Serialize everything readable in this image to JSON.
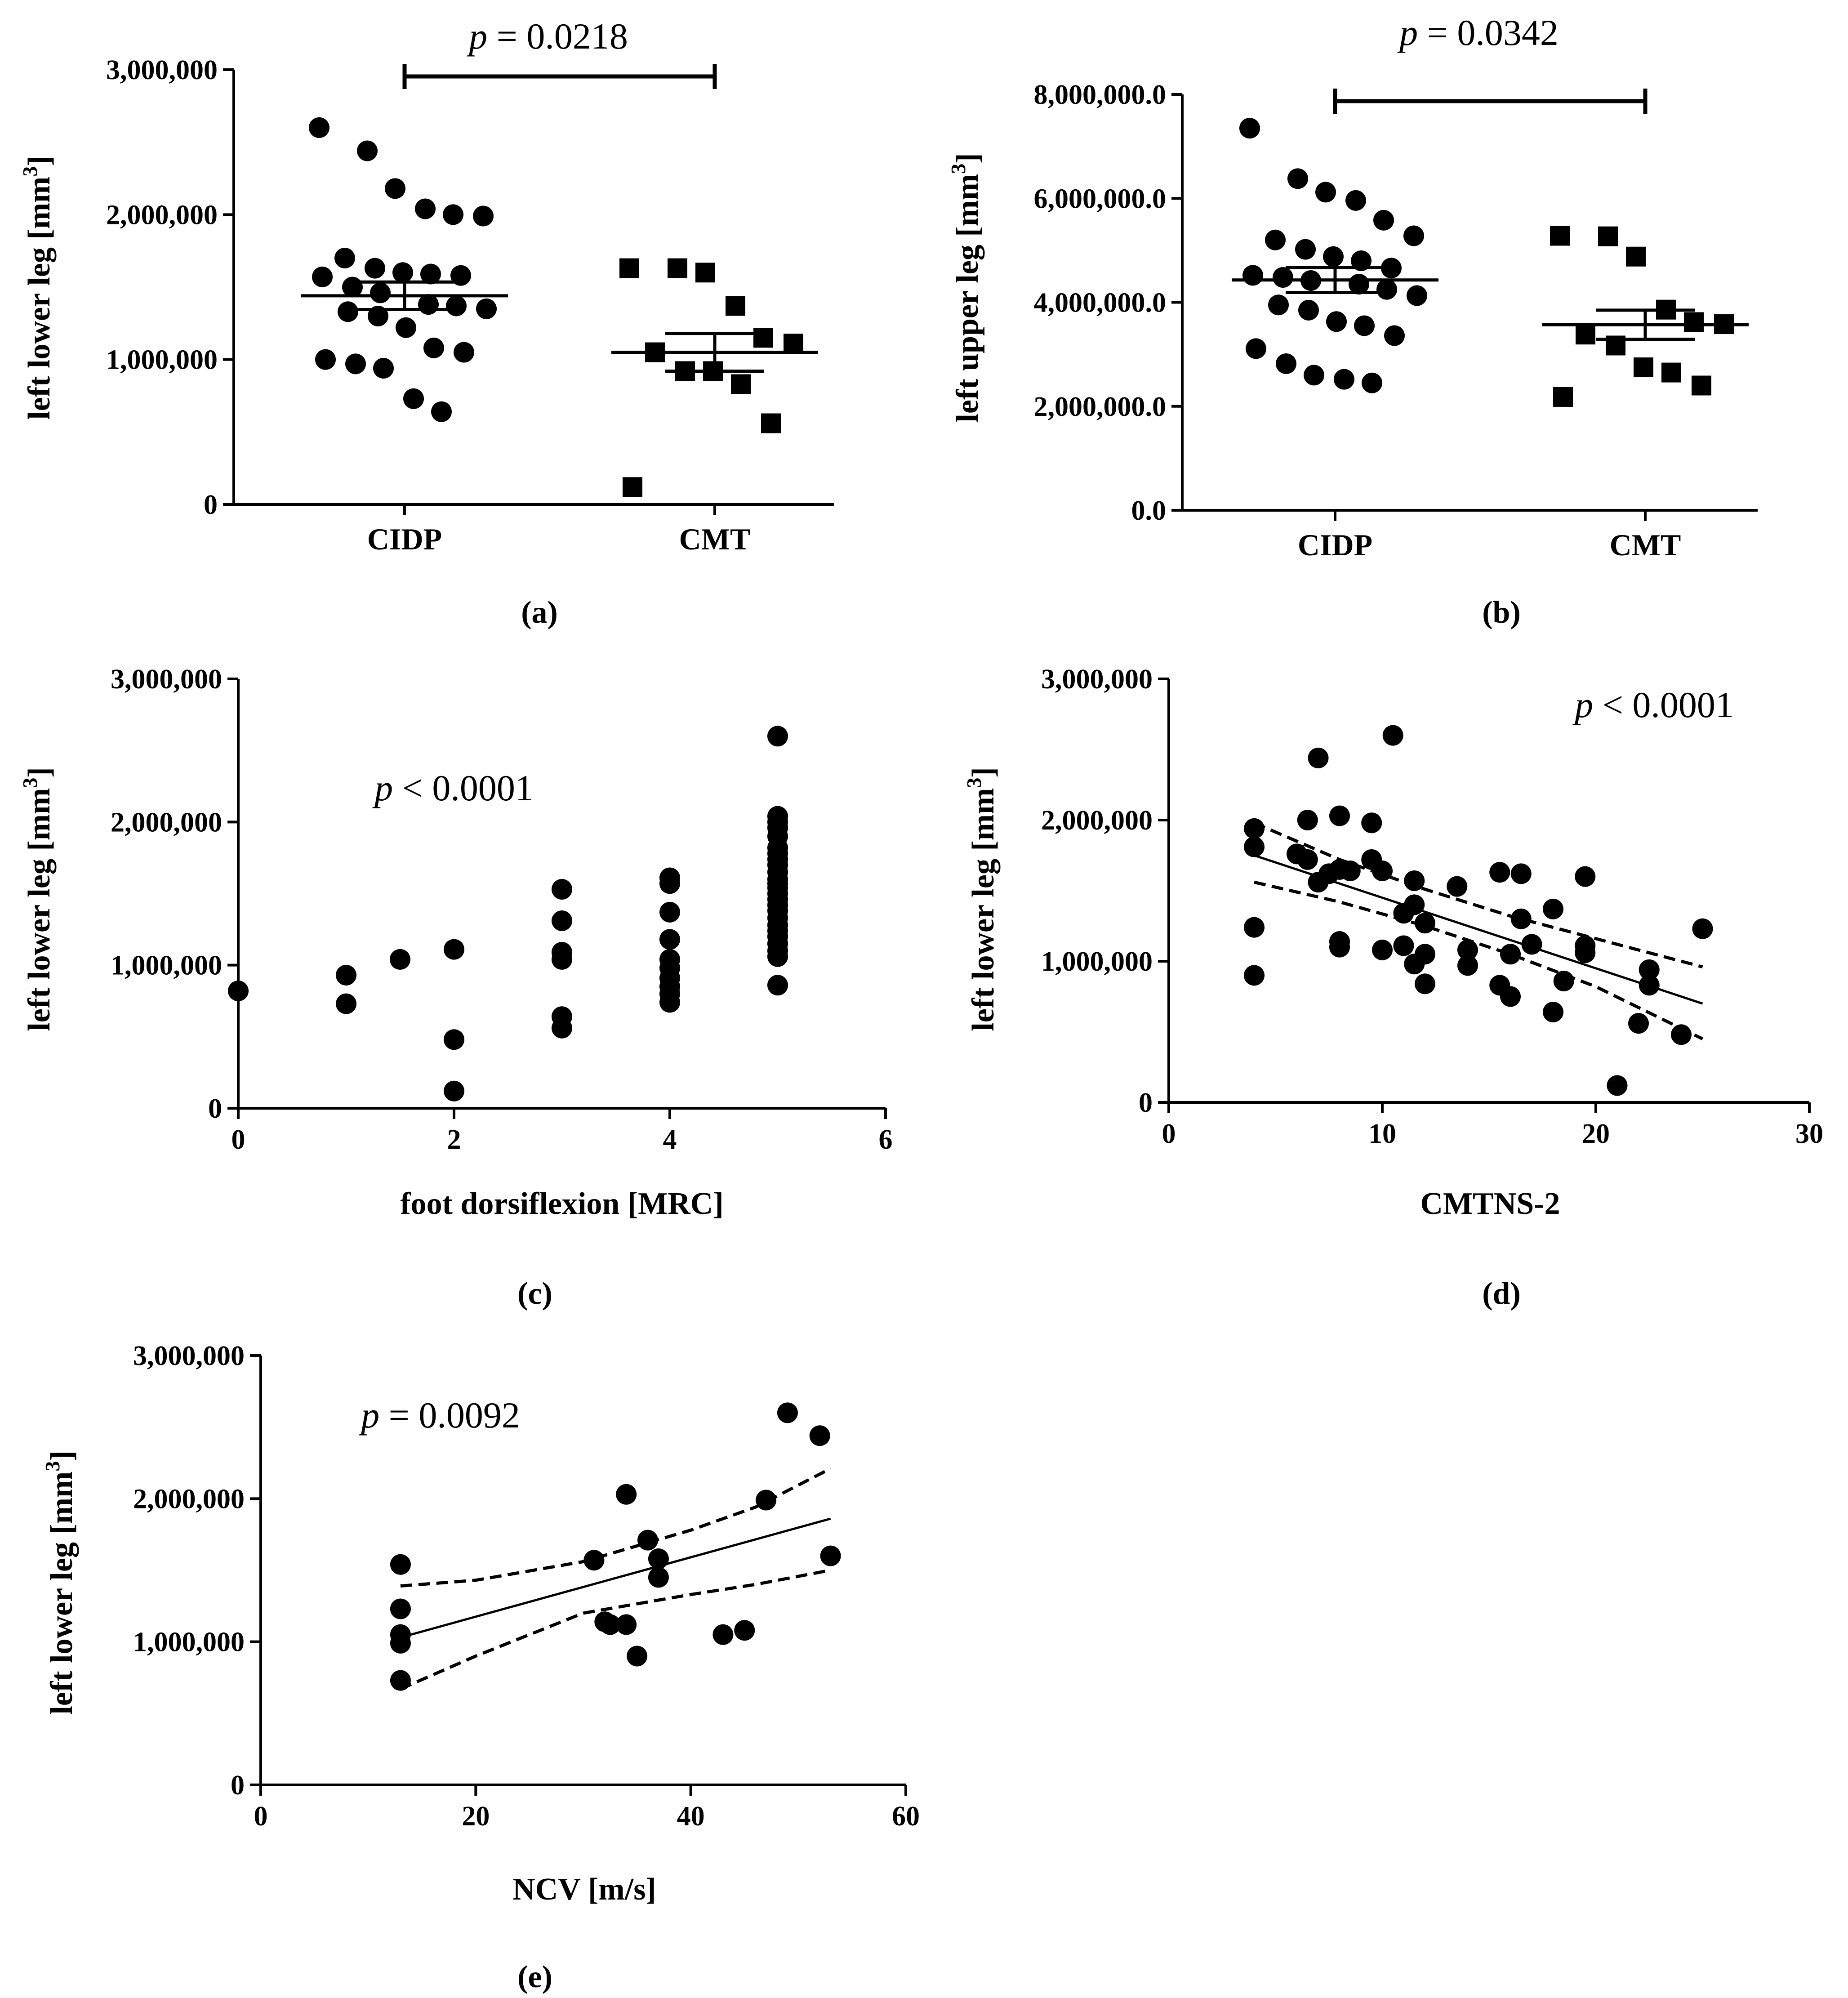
{
  "chart_data": [
    {
      "id": "a",
      "panel_label": "(a)",
      "type": "scatter",
      "title": "",
      "xlabel": "",
      "ylabel": "left lower leg [mm",
      "ylabel_sup": "3",
      "ylabel_end": "]",
      "ylim": [
        0,
        3000000
      ],
      "yticks": [
        0,
        1000000,
        2000000,
        3000000
      ],
      "ytick_labels": [
        "0",
        "1,000,000",
        "2,000,000",
        "3,000,000"
      ],
      "categories": [
        "CIDP",
        "CMT"
      ],
      "pvalue": {
        "symbol": "p",
        "text": " = 0.0218"
      },
      "series": [
        {
          "name": "CIDP",
          "marker": "circle",
          "values": [
            2600000,
            2440000,
            2180000,
            2040000,
            2000000,
            1990000,
            1700000,
            1630000,
            1600000,
            1590000,
            1580000,
            1570000,
            1500000,
            1460000,
            1380000,
            1370000,
            1350000,
            1330000,
            1300000,
            1220000,
            1080000,
            1050000,
            1000000,
            970000,
            940000,
            730000,
            640000
          ],
          "mean": 1440000,
          "sem": 95000
        },
        {
          "name": "CMT",
          "marker": "square",
          "values": [
            1630000,
            1630000,
            1600000,
            1370000,
            1150000,
            1110000,
            1050000,
            920000,
            920000,
            830000,
            560000,
            120000
          ],
          "mean": 1050000,
          "sem": 130000
        }
      ]
    },
    {
      "id": "b",
      "panel_label": "(b)",
      "type": "scatter",
      "title": "",
      "xlabel": "",
      "ylabel": "left upper leg [mm",
      "ylabel_sup": "3",
      "ylabel_end": "]",
      "ylim": [
        0,
        8000000
      ],
      "yticks": [
        0,
        2000000,
        4000000,
        6000000,
        8000000
      ],
      "ytick_labels": [
        "0.0",
        "2,000,000.0",
        "4,000,000.0",
        "6,000,000.0",
        "8,000,000.0"
      ],
      "categories": [
        "CIDP",
        "CMT"
      ],
      "pvalue": {
        "symbol": "p",
        "text": " = 0.0342"
      },
      "series": [
        {
          "name": "CIDP",
          "marker": "circle",
          "values": [
            7350000,
            6380000,
            6120000,
            5960000,
            5580000,
            5280000,
            5200000,
            5020000,
            4880000,
            4800000,
            4660000,
            4520000,
            4480000,
            4420000,
            4350000,
            4250000,
            4130000,
            3950000,
            3850000,
            3630000,
            3550000,
            3360000,
            3110000,
            2820000,
            2600000,
            2520000,
            2450000
          ],
          "mean": 4430000,
          "sem": 240000
        },
        {
          "name": "CMT",
          "marker": "square",
          "values": [
            5280000,
            5270000,
            4880000,
            3860000,
            3620000,
            3580000,
            3380000,
            3170000,
            2750000,
            2650000,
            2400000,
            2180000
          ],
          "mean": 3570000,
          "sem": 280000
        }
      ]
    },
    {
      "id": "c",
      "panel_label": "(c)",
      "type": "scatter",
      "title": "",
      "xlabel": "foot dorsiflexion [MRC]",
      "ylabel": "left lower leg [mm",
      "ylabel_sup": "3",
      "ylabel_end": "]",
      "xlim": [
        0,
        6
      ],
      "ylim": [
        0,
        3000000
      ],
      "xticks": [
        0,
        2,
        4,
        6
      ],
      "xtick_labels": [
        "0",
        "2",
        "4",
        "6"
      ],
      "yticks": [
        0,
        1000000,
        2000000,
        3000000
      ],
      "ytick_labels": [
        "0",
        "1,000,000",
        "2,000,000",
        "3,000,000"
      ],
      "pvalue": {
        "symbol": "p",
        "text": " < 0.0001"
      },
      "points": [
        [
          0,
          820000
        ],
        [
          1,
          930000
        ],
        [
          1,
          730000
        ],
        [
          1.5,
          1040000
        ],
        [
          2,
          1110000
        ],
        [
          2,
          480000
        ],
        [
          2,
          120000
        ],
        [
          3,
          1530000
        ],
        [
          3,
          1310000
        ],
        [
          3,
          1090000
        ],
        [
          3,
          1040000
        ],
        [
          3,
          640000
        ],
        [
          3,
          560000
        ],
        [
          4,
          1610000
        ],
        [
          4,
          1570000
        ],
        [
          4,
          1370000
        ],
        [
          4,
          1180000
        ],
        [
          4,
          1040000
        ],
        [
          4,
          980000
        ],
        [
          4,
          910000
        ],
        [
          4,
          850000
        ],
        [
          4,
          800000
        ],
        [
          4,
          740000
        ],
        [
          5,
          2600000
        ],
        [
          5,
          2040000
        ],
        [
          5,
          2000000
        ],
        [
          5,
          1960000
        ],
        [
          5,
          1900000
        ],
        [
          5,
          1820000
        ],
        [
          5,
          1780000
        ],
        [
          5,
          1740000
        ],
        [
          5,
          1700000
        ],
        [
          5,
          1650000
        ],
        [
          5,
          1600000
        ],
        [
          5,
          1570000
        ],
        [
          5,
          1540000
        ],
        [
          5,
          1500000
        ],
        [
          5,
          1460000
        ],
        [
          5,
          1420000
        ],
        [
          5,
          1380000
        ],
        [
          5,
          1330000
        ],
        [
          5,
          1280000
        ],
        [
          5,
          1240000
        ],
        [
          5,
          1200000
        ],
        [
          5,
          1150000
        ],
        [
          5,
          1100000
        ],
        [
          5,
          1060000
        ],
        [
          5,
          860000
        ]
      ]
    },
    {
      "id": "d",
      "panel_label": "(d)",
      "type": "scatter",
      "title": "",
      "xlabel": "CMTNS-2",
      "ylabel": "left lower leg [mm",
      "ylabel_sup": "3",
      "ylabel_end": "]",
      "xlim": [
        0,
        30
      ],
      "ylim": [
        0,
        3000000
      ],
      "xticks": [
        0,
        10,
        20,
        30
      ],
      "xtick_labels": [
        "0",
        "10",
        "20",
        "30"
      ],
      "yticks": [
        0,
        1000000,
        2000000,
        3000000
      ],
      "ytick_labels": [
        "0",
        "1,000,000",
        "2,000,000",
        "3,000,000"
      ],
      "pvalue": {
        "symbol": "p",
        "text": " < 0.0001"
      },
      "points": [
        [
          4,
          1940000
        ],
        [
          4,
          1810000
        ],
        [
          4,
          1240000
        ],
        [
          4,
          900000
        ],
        [
          6,
          1760000
        ],
        [
          6.5,
          2000000
        ],
        [
          6.5,
          1720000
        ],
        [
          7,
          2440000
        ],
        [
          7,
          1560000
        ],
        [
          7.5,
          1620000
        ],
        [
          8,
          2030000
        ],
        [
          8,
          1650000
        ],
        [
          8,
          1140000
        ],
        [
          8,
          1100000
        ],
        [
          8.5,
          1640000
        ],
        [
          9.5,
          1980000
        ],
        [
          9.5,
          1720000
        ],
        [
          10,
          1640000
        ],
        [
          10,
          1080000
        ],
        [
          10.5,
          2600000
        ],
        [
          11,
          1340000
        ],
        [
          11,
          1110000
        ],
        [
          11.5,
          1570000
        ],
        [
          11.5,
          1400000
        ],
        [
          11.5,
          980000
        ],
        [
          12,
          1270000
        ],
        [
          12,
          1050000
        ],
        [
          12,
          840000
        ],
        [
          13.5,
          1530000
        ],
        [
          14,
          1080000
        ],
        [
          14,
          970000
        ],
        [
          15.5,
          1630000
        ],
        [
          15.5,
          830000
        ],
        [
          16,
          1050000
        ],
        [
          16,
          750000
        ],
        [
          16.5,
          1620000
        ],
        [
          16.5,
          1300000
        ],
        [
          17,
          1120000
        ],
        [
          18,
          1370000
        ],
        [
          18,
          640000
        ],
        [
          18.5,
          860000
        ],
        [
          19.5,
          1600000
        ],
        [
          19.5,
          1110000
        ],
        [
          19.5,
          1060000
        ],
        [
          21,
          120000
        ],
        [
          22,
          560000
        ],
        [
          22.5,
          940000
        ],
        [
          22.5,
          830000
        ],
        [
          24,
          480000
        ],
        [
          25,
          1230000
        ]
      ],
      "fit": {
        "x": [
          4,
          25
        ],
        "y": [
          1750000,
          700000
        ]
      },
      "ci_upper": {
        "x": [
          4,
          8,
          12,
          16,
          20,
          25
        ],
        "y": [
          1980000,
          1720000,
          1510000,
          1320000,
          1160000,
          960000
        ]
      },
      "ci_lower": {
        "x": [
          4,
          8,
          12,
          16,
          20,
          25
        ],
        "y": [
          1560000,
          1420000,
          1250000,
          1050000,
          820000,
          450000
        ]
      }
    },
    {
      "id": "e",
      "panel_label": "(e)",
      "type": "scatter",
      "title": "",
      "xlabel": "NCV [m/s]",
      "ylabel": "left lower leg [mm",
      "ylabel_sup": "3",
      "ylabel_end": "]",
      "xlim": [
        0,
        60
      ],
      "ylim": [
        0,
        3000000
      ],
      "xticks": [
        0,
        20,
        40,
        60
      ],
      "xtick_labels": [
        "0",
        "20",
        "40",
        "60"
      ],
      "yticks": [
        0,
        1000000,
        2000000,
        3000000
      ],
      "ytick_labels": [
        "0",
        "1,000,000",
        "2,000,000",
        "3,000,000"
      ],
      "pvalue": {
        "symbol": "p",
        "text": " = 0.0092"
      },
      "points": [
        [
          13,
          1540000
        ],
        [
          13,
          1230000
        ],
        [
          13,
          1050000
        ],
        [
          13,
          990000
        ],
        [
          13,
          730000
        ],
        [
          31,
          1570000
        ],
        [
          32,
          1140000
        ],
        [
          32.5,
          1120000
        ],
        [
          34,
          2030000
        ],
        [
          34,
          1120000
        ],
        [
          35,
          900000
        ],
        [
          36,
          1710000
        ],
        [
          37,
          1580000
        ],
        [
          37,
          1450000
        ],
        [
          43,
          1050000
        ],
        [
          45,
          1080000
        ],
        [
          47,
          1990000
        ],
        [
          49,
          2600000
        ],
        [
          52,
          2440000
        ],
        [
          53,
          1600000
        ]
      ],
      "fit": {
        "x": [
          13,
          53
        ],
        "y": [
          1030000,
          1860000
        ]
      },
      "ci_upper": {
        "x": [
          13,
          20,
          30,
          40,
          46,
          53
        ],
        "y": [
          1390000,
          1430000,
          1560000,
          1780000,
          1940000,
          2210000
        ]
      },
      "ci_lower": {
        "x": [
          13,
          20,
          30,
          40,
          46,
          53
        ],
        "y": [
          670000,
          900000,
          1200000,
          1330000,
          1400000,
          1500000
        ]
      }
    }
  ]
}
